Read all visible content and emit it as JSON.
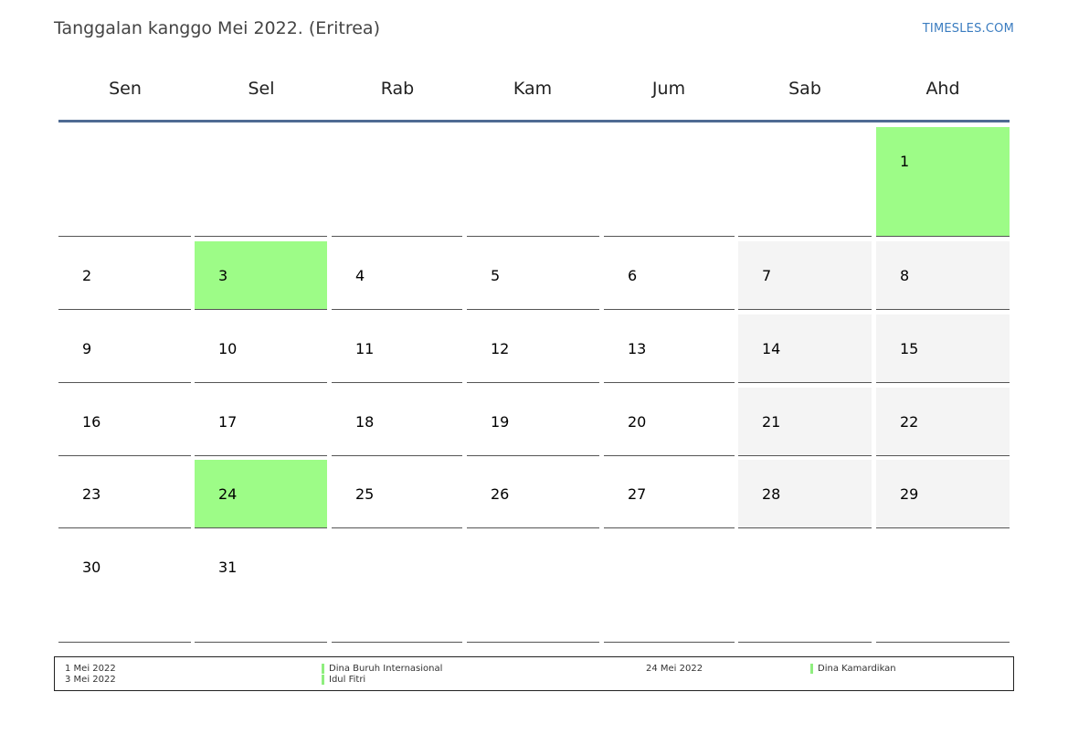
{
  "header": {
    "title": "Tanggalan kanggo Mei 2022. (Eritrea)",
    "brand": "TIMESLES.COM"
  },
  "weekdays": [
    "Sen",
    "Sel",
    "Rab",
    "Kam",
    "Jum",
    "Sab",
    "Ahd"
  ],
  "weeks": [
    [
      "",
      "",
      "",
      "",
      "",
      "",
      "1"
    ],
    [
      "2",
      "3",
      "4",
      "5",
      "6",
      "7",
      "8"
    ],
    [
      "9",
      "10",
      "11",
      "12",
      "13",
      "14",
      "15"
    ],
    [
      "16",
      "17",
      "18",
      "19",
      "20",
      "21",
      "22"
    ],
    [
      "23",
      "24",
      "25",
      "26",
      "27",
      "28",
      "29"
    ],
    [
      "30",
      "31",
      "",
      "",
      "",
      "",
      ""
    ]
  ],
  "holidays": [
    "1",
    "3",
    "24"
  ],
  "colors": {
    "holiday": "#9dfc87",
    "weekend": "#f4f4f4",
    "header_line": "#4f6b93",
    "brand": "#3a7cc0"
  },
  "legend": {
    "col1_dates": [
      "1 Mei 2022",
      "3 Mei 2022"
    ],
    "col1_names": [
      "Dina Buruh Internasional",
      "Idul Fitri"
    ],
    "col2_dates": [
      "24 Mei 2022"
    ],
    "col2_names": [
      "Dina Kamardikan"
    ]
  }
}
